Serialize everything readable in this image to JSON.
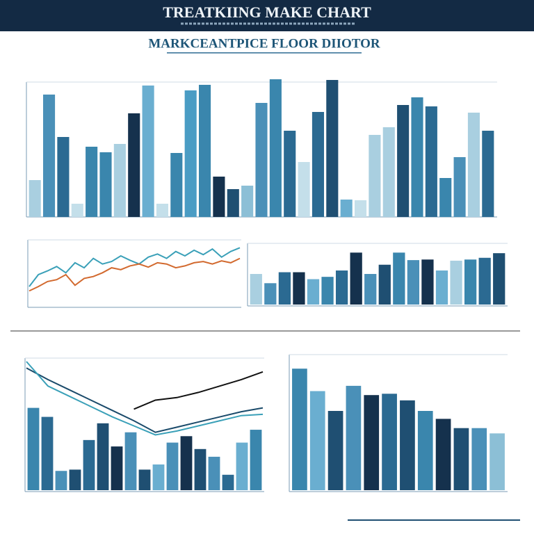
{
  "header": {
    "title": "TREATKIING MAKE CHART"
  },
  "subtitle": "MARKCEANTPICE FLOOR DIIOTOR",
  "chart_data": [
    {
      "type": "bar",
      "ylim": [
        0,
        100
      ],
      "values": [
        26.5,
        88,
        57.5,
        9.5,
        50.5,
        46.5,
        52.5,
        74.5,
        94.5,
        9.5,
        46,
        91,
        95,
        29,
        20,
        22.5,
        82,
        99,
        62,
        39.5,
        75.5,
        98.5,
        12.5,
        12,
        59,
        64.5,
        80.5,
        86,
        79.5,
        28,
        43,
        75,
        62
      ],
      "colors": [
        "#a9cfe0",
        "#4a90b8",
        "#2b6a92",
        "#c4dfea",
        "#3a86ad",
        "#3a86ad",
        "#a9cfe0",
        "#15314d",
        "#6aaed0",
        "#c4dfea",
        "#3a86ad",
        "#4a9cc4",
        "#3a86ad",
        "#15314d",
        "#1f4f72",
        "#8cbfd6",
        "#4a90b8",
        "#3a86ad",
        "#2b6a92",
        "#c4dfea",
        "#2b6a92",
        "#1f4f72",
        "#6aaed0",
        "#c4dfea",
        "#a9cfe0",
        "#a9cfe0",
        "#1f4f72",
        "#3a86ad",
        "#2b6a92",
        "#3a86ad",
        "#4a90b8",
        "#a9cfe0",
        "#2b6a92"
      ]
    },
    {
      "type": "line",
      "ylim": [
        0,
        100
      ],
      "series": [
        {
          "color": "#3aa0b8",
          "values": [
            31,
            50,
            56,
            63,
            53,
            69,
            61,
            76,
            67,
            71,
            80,
            73,
            67,
            78,
            83,
            76,
            87,
            80,
            89,
            82,
            91,
            78,
            87,
            93
          ]
        },
        {
          "color": "#d2692e",
          "values": [
            24,
            31,
            39,
            42,
            50,
            33,
            44,
            47,
            53,
            61,
            58,
            64,
            67,
            62,
            69,
            67,
            61,
            64,
            69,
            71,
            67,
            72,
            69,
            76
          ]
        }
      ]
    },
    {
      "type": "bar",
      "ylim": [
        0,
        100
      ],
      "values": [
        53,
        37,
        56,
        56,
        44,
        48,
        59,
        90,
        53,
        69,
        90,
        77,
        78,
        59,
        76,
        78,
        81,
        89
      ],
      "colors": [
        "#a9cfe0",
        "#4a90b8",
        "#2b6a92",
        "#15314d",
        "#6aaed0",
        "#3a86ad",
        "#2b6a92",
        "#15314d",
        "#4a90b8",
        "#1f4f72",
        "#3a86ad",
        "#4a90b8",
        "#15314d",
        "#6aaed0",
        "#a9cfe0",
        "#3a86ad",
        "#2b6a92",
        "#1f4f72"
      ]
    },
    {
      "type": "bar",
      "ylim": [
        0,
        100
      ],
      "values": [
        64,
        57,
        15,
        16,
        39,
        52,
        34,
        45,
        16,
        20,
        37,
        42,
        32,
        26,
        12,
        37,
        47
      ],
      "colors": [
        "#3a86ad",
        "#2b6a92",
        "#4a90b8",
        "#1f4f72",
        "#2b6a92",
        "#1f4f72",
        "#15314d",
        "#4a90b8",
        "#1f4f72",
        "#6aaed0",
        "#4a90b8",
        "#15314d",
        "#1f4f72",
        "#4a90b8",
        "#2b6a92",
        "#6aaed0",
        "#3a86ad"
      ]
    },
    {
      "type": "line",
      "ylim": [
        0,
        100
      ],
      "series": [
        {
          "color": "#1a4a6a",
          "values": [
            95,
            86,
            78,
            70,
            62,
            54,
            45,
            49,
            53,
            57,
            61,
            64
          ]
        },
        {
          "color": "#3aa0b8",
          "values": [
            100,
            81,
            73,
            65,
            57,
            50,
            43,
            46,
            50,
            54,
            58,
            59
          ]
        },
        {
          "color": "#111111",
          "values": [
            null,
            null,
            null,
            null,
            null,
            63,
            70,
            72,
            76,
            81,
            86,
            92
          ]
        }
      ]
    },
    {
      "type": "bar",
      "ylim": [
        0,
        100
      ],
      "values": [
        92,
        75,
        60,
        79,
        72,
        73,
        68,
        60,
        54,
        47,
        47,
        43
      ],
      "colors": [
        "#3a86ad",
        "#6aaed0",
        "#1f4f72",
        "#4a90b8",
        "#15314d",
        "#2b6a92",
        "#1f4f72",
        "#3a86ad",
        "#15314d",
        "#1f4f72",
        "#4a90b8",
        "#8cbfd6"
      ]
    }
  ]
}
